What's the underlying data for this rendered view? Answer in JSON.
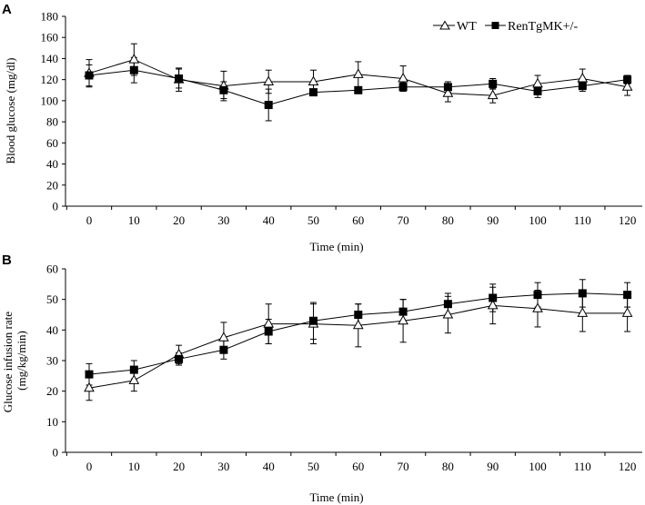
{
  "chart_data": [
    {
      "type": "line",
      "panel_label": "A",
      "title": "",
      "xlabel": "Time (min)",
      "ylabel": "Blood glucose (mg/dl)",
      "ylim": [
        0,
        180
      ],
      "yticks": [
        "0",
        "20",
        "40",
        "60",
        "80",
        "100",
        "120",
        "140",
        "160",
        "180"
      ],
      "categories": [
        "0",
        "10",
        "20",
        "30",
        "40",
        "50",
        "60",
        "70",
        "80",
        "90",
        "100",
        "110",
        "120"
      ],
      "grid": false,
      "legend": "top-right",
      "series": [
        {
          "name": "WT",
          "marker": "open-triangle",
          "values": [
            126,
            139,
            120,
            114,
            118,
            118,
            125,
            121,
            107,
            105,
            116,
            121,
            113
          ],
          "errors": [
            13,
            15,
            11,
            14,
            11,
            11,
            12,
            12,
            8,
            7,
            8,
            9,
            8
          ]
        },
        {
          "name": "RenTgMK+/-",
          "marker": "filled-square",
          "values": [
            124,
            129,
            121,
            110,
            96,
            108,
            110,
            113,
            113,
            116,
            109,
            114,
            120
          ],
          "errors": [
            10,
            12,
            9,
            8,
            15,
            3,
            3,
            4,
            5,
            5,
            6,
            5,
            4
          ]
        }
      ]
    },
    {
      "type": "line",
      "panel_label": "B",
      "title": "",
      "xlabel": "Time (min)",
      "ylabel": "Glucose infusion rate (mg/kg/min)",
      "ylim": [
        0,
        60
      ],
      "yticks": [
        "0",
        "10",
        "20",
        "30",
        "40",
        "50",
        "60"
      ],
      "categories": [
        "0",
        "10",
        "20",
        "30",
        "40",
        "50",
        "60",
        "70",
        "80",
        "90",
        "100",
        "110",
        "120"
      ],
      "grid": false,
      "legend": "none",
      "series": [
        {
          "name": "WT",
          "marker": "open-triangle",
          "values": [
            21,
            23.5,
            32,
            37.5,
            42,
            42,
            41.5,
            43,
            45,
            48,
            47,
            45.5,
            45.5
          ],
          "errors": [
            4,
            3.5,
            3,
            5,
            6.5,
            6.5,
            7,
            7,
            6,
            6,
            6,
            6,
            6
          ]
        },
        {
          "name": "RenTgMK+/-",
          "marker": "filled-square",
          "values": [
            25.5,
            27,
            30.5,
            33.5,
            39.5,
            43,
            45,
            46,
            48.5,
            50.5,
            51.5,
            52,
            51.5
          ],
          "errors": [
            3.5,
            3,
            2,
            3,
            4,
            6,
            3.5,
            4,
            3.5,
            4.5,
            4,
            4.5,
            4
          ]
        }
      ]
    }
  ]
}
